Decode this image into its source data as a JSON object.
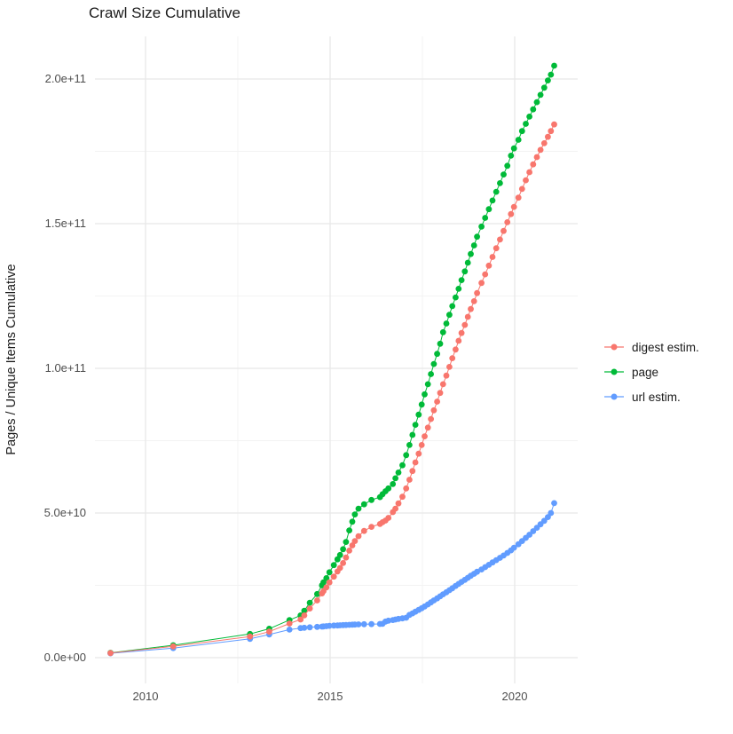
{
  "title": "Crawl Size Cumulative",
  "chart_data": {
    "type": "scatter",
    "title": "Crawl Size Cumulative",
    "xlabel": "",
    "ylabel": "Pages / Unique Items Cumulative",
    "legend_position": "right",
    "grid": true,
    "xlim": [
      2008.63,
      2021.71
    ],
    "ylim_e9": [
      -8,
      215
    ],
    "xticks": [
      2010,
      2015,
      2020
    ],
    "xtick_labels": [
      "2010",
      "2015",
      "2020"
    ],
    "yticks_e9": [
      0,
      50,
      100,
      150,
      200
    ],
    "ytick_labels": [
      "0.0e+00",
      "5.0e+10",
      "1.0e+11",
      "1.5e+11",
      "2.0e+11"
    ],
    "x_minor_gridlines": [
      2012.5,
      2017.5
    ],
    "y_minor_gridlines_e9": [
      25,
      75,
      125,
      175
    ],
    "y_unit_multiplier": 1000000000.0,
    "draw_order": [
      1,
      2,
      0
    ],
    "series": [
      {
        "id": "digest-estim",
        "name": "digest estim.",
        "color": "#F8766D",
        "points_year_value_e9": [
          [
            2009.05,
            1.6
          ],
          [
            2010.75,
            3.9
          ],
          [
            2012.83,
            7.3
          ],
          [
            2013.35,
            9.0
          ],
          [
            2013.9,
            11.8
          ],
          [
            2014.2,
            13.2
          ],
          [
            2014.3,
            14.6
          ],
          [
            2014.45,
            17.0
          ],
          [
            2014.65,
            19.8
          ],
          [
            2014.78,
            22.2
          ],
          [
            2014.82,
            23.0
          ],
          [
            2014.9,
            24.3
          ],
          [
            2014.98,
            26.0
          ],
          [
            2015.1,
            28.0
          ],
          [
            2015.2,
            29.8
          ],
          [
            2015.27,
            31.0
          ],
          [
            2015.35,
            32.7
          ],
          [
            2015.43,
            34.6
          ],
          [
            2015.52,
            37.0
          ],
          [
            2015.6,
            38.8
          ],
          [
            2015.67,
            40.3
          ],
          [
            2015.77,
            42.0
          ],
          [
            2015.92,
            43.8
          ],
          [
            2016.12,
            45.2
          ],
          [
            2016.35,
            46.2
          ],
          [
            2016.42,
            46.8
          ],
          [
            2016.5,
            47.4
          ],
          [
            2016.58,
            48.3
          ],
          [
            2016.7,
            50.3
          ],
          [
            2016.77,
            51.5
          ],
          [
            2016.85,
            53.3
          ],
          [
            2016.96,
            55.6
          ],
          [
            2017.06,
            58.5
          ],
          [
            2017.15,
            61.5
          ],
          [
            2017.23,
            64.5
          ],
          [
            2017.31,
            67.5
          ],
          [
            2017.4,
            70.5
          ],
          [
            2017.48,
            73.5
          ],
          [
            2017.56,
            76.5
          ],
          [
            2017.65,
            79.5
          ],
          [
            2017.73,
            82.5
          ],
          [
            2017.81,
            85.5
          ],
          [
            2017.9,
            88.5
          ],
          [
            2017.98,
            91.5
          ],
          [
            2018.06,
            94.5
          ],
          [
            2018.15,
            97.5
          ],
          [
            2018.23,
            100.5
          ],
          [
            2018.31,
            103.5
          ],
          [
            2018.4,
            106.5
          ],
          [
            2018.48,
            109.5
          ],
          [
            2018.56,
            112.2
          ],
          [
            2018.65,
            115.0
          ],
          [
            2018.73,
            117.8
          ],
          [
            2018.81,
            120.5
          ],
          [
            2018.9,
            123.2
          ],
          [
            2018.98,
            126.0
          ],
          [
            2019.1,
            129.5
          ],
          [
            2019.2,
            132.5
          ],
          [
            2019.3,
            135.5
          ],
          [
            2019.4,
            138.5
          ],
          [
            2019.5,
            141.5
          ],
          [
            2019.6,
            144.5
          ],
          [
            2019.7,
            147.5
          ],
          [
            2019.8,
            150.5
          ],
          [
            2019.9,
            153.3
          ],
          [
            2019.98,
            155.8
          ],
          [
            2020.1,
            159.0
          ],
          [
            2020.2,
            162.0
          ],
          [
            2020.3,
            165.0
          ],
          [
            2020.4,
            167.8
          ],
          [
            2020.5,
            170.5
          ],
          [
            2020.6,
            173.0
          ],
          [
            2020.7,
            175.5
          ],
          [
            2020.8,
            177.8
          ],
          [
            2020.9,
            180.0
          ],
          [
            2020.98,
            182.0
          ],
          [
            2021.07,
            184.3
          ]
        ]
      },
      {
        "id": "page",
        "name": "page",
        "color": "#00BA38",
        "points_year_value_e9": [
          [
            2009.05,
            1.7
          ],
          [
            2010.75,
            4.3
          ],
          [
            2012.83,
            8.2
          ],
          [
            2013.35,
            10.0
          ],
          [
            2013.9,
            13.0
          ],
          [
            2014.2,
            14.6
          ],
          [
            2014.3,
            16.2
          ],
          [
            2014.45,
            19.0
          ],
          [
            2014.65,
            22.0
          ],
          [
            2014.78,
            25.0
          ],
          [
            2014.82,
            26.0
          ],
          [
            2014.9,
            27.5
          ],
          [
            2014.98,
            29.5
          ],
          [
            2015.1,
            32.0
          ],
          [
            2015.2,
            34.0
          ],
          [
            2015.27,
            35.5
          ],
          [
            2015.35,
            37.5
          ],
          [
            2015.43,
            40.0
          ],
          [
            2015.52,
            44.0
          ],
          [
            2015.6,
            47.0
          ],
          [
            2015.67,
            49.5
          ],
          [
            2015.77,
            51.5
          ],
          [
            2015.92,
            53.0
          ],
          [
            2016.12,
            54.5
          ],
          [
            2016.35,
            55.5
          ],
          [
            2016.42,
            56.5
          ],
          [
            2016.5,
            57.5
          ],
          [
            2016.58,
            58.5
          ],
          [
            2016.7,
            60.0
          ],
          [
            2016.77,
            62.0
          ],
          [
            2016.85,
            64.0
          ],
          [
            2016.96,
            66.5
          ],
          [
            2017.06,
            70.0
          ],
          [
            2017.15,
            73.5
          ],
          [
            2017.23,
            77.0
          ],
          [
            2017.31,
            80.5
          ],
          [
            2017.4,
            84.0
          ],
          [
            2017.48,
            87.5
          ],
          [
            2017.56,
            91.0
          ],
          [
            2017.65,
            94.5
          ],
          [
            2017.73,
            98.0
          ],
          [
            2017.81,
            101.5
          ],
          [
            2017.9,
            105.0
          ],
          [
            2017.98,
            108.5
          ],
          [
            2018.06,
            112.5
          ],
          [
            2018.15,
            115.5
          ],
          [
            2018.23,
            118.5
          ],
          [
            2018.31,
            121.5
          ],
          [
            2018.4,
            124.5
          ],
          [
            2018.48,
            127.5
          ],
          [
            2018.56,
            130.5
          ],
          [
            2018.65,
            133.5
          ],
          [
            2018.73,
            136.5
          ],
          [
            2018.81,
            139.5
          ],
          [
            2018.9,
            142.5
          ],
          [
            2018.98,
            145.5
          ],
          [
            2019.1,
            149.0
          ],
          [
            2019.2,
            152.0
          ],
          [
            2019.3,
            155.0
          ],
          [
            2019.4,
            158.0
          ],
          [
            2019.5,
            161.0
          ],
          [
            2019.6,
            164.0
          ],
          [
            2019.7,
            167.0
          ],
          [
            2019.8,
            170.0
          ],
          [
            2019.9,
            173.5
          ],
          [
            2019.98,
            176.0
          ],
          [
            2020.1,
            179.0
          ],
          [
            2020.2,
            182.0
          ],
          [
            2020.3,
            184.5
          ],
          [
            2020.4,
            187.0
          ],
          [
            2020.5,
            189.5
          ],
          [
            2020.6,
            192.0
          ],
          [
            2020.7,
            194.5
          ],
          [
            2020.8,
            197.0
          ],
          [
            2020.9,
            199.5
          ],
          [
            2020.98,
            201.5
          ],
          [
            2021.07,
            204.6
          ]
        ]
      },
      {
        "id": "url-estim",
        "name": "url estim.",
        "color": "#619CFF",
        "points_year_value_e9": [
          [
            2009.05,
            1.5
          ],
          [
            2010.75,
            3.3
          ],
          [
            2012.83,
            6.5
          ],
          [
            2013.35,
            8.0
          ],
          [
            2013.9,
            9.7
          ],
          [
            2014.2,
            10.2
          ],
          [
            2014.3,
            10.35
          ],
          [
            2014.45,
            10.5
          ],
          [
            2014.65,
            10.65
          ],
          [
            2014.78,
            10.75
          ],
          [
            2014.82,
            10.8
          ],
          [
            2014.9,
            10.9
          ],
          [
            2014.98,
            11.0
          ],
          [
            2015.1,
            11.1
          ],
          [
            2015.2,
            11.15
          ],
          [
            2015.27,
            11.2
          ],
          [
            2015.35,
            11.25
          ],
          [
            2015.43,
            11.3
          ],
          [
            2015.52,
            11.35
          ],
          [
            2015.6,
            11.4
          ],
          [
            2015.67,
            11.45
          ],
          [
            2015.77,
            11.5
          ],
          [
            2015.92,
            11.55
          ],
          [
            2016.12,
            11.6
          ],
          [
            2016.35,
            11.65
          ],
          [
            2016.42,
            11.7
          ],
          [
            2016.5,
            12.5
          ],
          [
            2016.58,
            12.8
          ],
          [
            2016.7,
            13.0
          ],
          [
            2016.77,
            13.2
          ],
          [
            2016.85,
            13.4
          ],
          [
            2016.96,
            13.6
          ],
          [
            2017.06,
            13.8
          ],
          [
            2017.15,
            14.8
          ],
          [
            2017.23,
            15.3
          ],
          [
            2017.31,
            15.9
          ],
          [
            2017.4,
            16.5
          ],
          [
            2017.48,
            17.1
          ],
          [
            2017.56,
            17.7
          ],
          [
            2017.65,
            18.4
          ],
          [
            2017.73,
            19.1
          ],
          [
            2017.81,
            19.8
          ],
          [
            2017.9,
            20.5
          ],
          [
            2017.98,
            21.2
          ],
          [
            2018.06,
            21.9
          ],
          [
            2018.15,
            22.6
          ],
          [
            2018.23,
            23.3
          ],
          [
            2018.31,
            24.0
          ],
          [
            2018.4,
            24.8
          ],
          [
            2018.48,
            25.5
          ],
          [
            2018.56,
            26.2
          ],
          [
            2018.65,
            26.9
          ],
          [
            2018.73,
            27.6
          ],
          [
            2018.81,
            28.3
          ],
          [
            2018.9,
            29.0
          ],
          [
            2018.98,
            29.7
          ],
          [
            2019.1,
            30.5
          ],
          [
            2019.2,
            31.3
          ],
          [
            2019.3,
            32.1
          ],
          [
            2019.4,
            32.9
          ],
          [
            2019.5,
            33.7
          ],
          [
            2019.6,
            34.5
          ],
          [
            2019.7,
            35.3
          ],
          [
            2019.8,
            36.2
          ],
          [
            2019.9,
            37.1
          ],
          [
            2019.98,
            38.0
          ],
          [
            2020.1,
            39.2
          ],
          [
            2020.2,
            40.3
          ],
          [
            2020.3,
            41.4
          ],
          [
            2020.4,
            42.5
          ],
          [
            2020.5,
            43.7
          ],
          [
            2020.6,
            44.9
          ],
          [
            2020.7,
            46.1
          ],
          [
            2020.8,
            47.3
          ],
          [
            2020.9,
            48.6
          ],
          [
            2020.98,
            50.0
          ],
          [
            2021.07,
            53.4
          ]
        ]
      }
    ]
  }
}
